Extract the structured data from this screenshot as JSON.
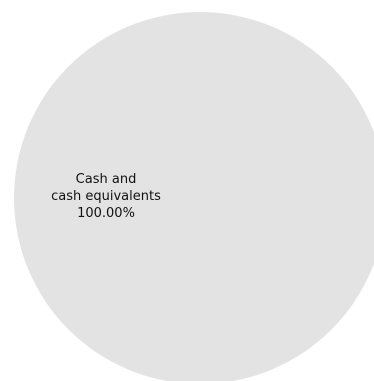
{
  "chart_data": {
    "type": "pie",
    "slices": [
      {
        "label_lines": [
          "Cash and",
          "cash equivalents"
        ],
        "value_label": "100.00%",
        "value": 100.0,
        "color": "#e3e3e3"
      }
    ],
    "title": "",
    "legend": "none"
  }
}
